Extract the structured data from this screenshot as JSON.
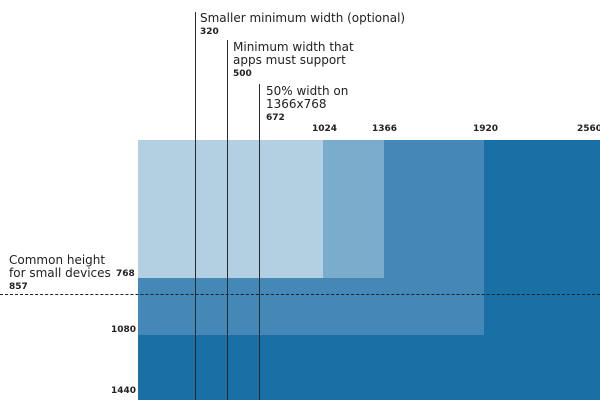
{
  "colors": {
    "rect_1024": "#b2d0e2",
    "rect_1366": "#7aaccc",
    "rect_1920": "#4388b7",
    "rect_2560": "#1870a5",
    "lines": "#2a2a2a"
  },
  "widths": [
    "1024",
    "1366",
    "1920",
    "2560"
  ],
  "heights": [
    "768",
    "1080",
    "1440"
  ],
  "callouts": [
    {
      "label_lines": [
        "Smaller minimum width (optional)"
      ],
      "value": "320"
    },
    {
      "label_lines": [
        "Minimum width that",
        "apps must support"
      ],
      "value": "500"
    },
    {
      "label_lines": [
        "50% width on",
        "1366x768"
      ],
      "value": "672"
    }
  ],
  "common_height": {
    "label_lines": [
      "Common height",
      "for small devices"
    ],
    "value": "857"
  }
}
